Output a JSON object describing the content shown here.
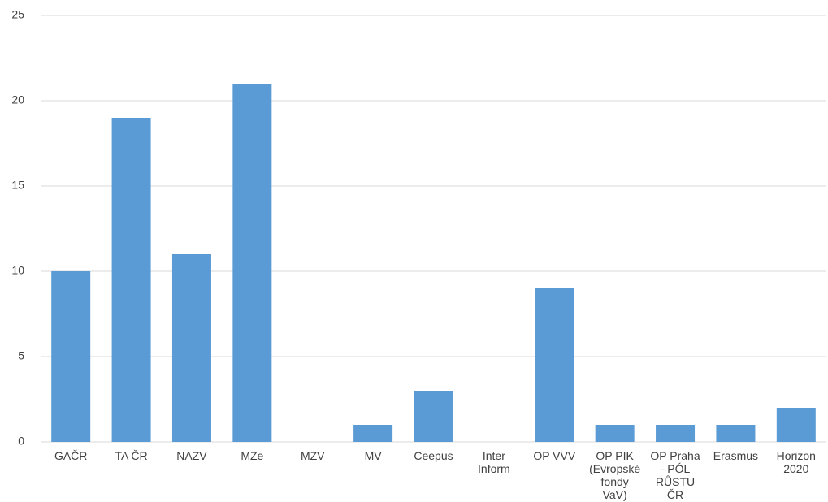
{
  "chart_data": {
    "type": "bar",
    "categories": [
      "GAČR",
      "TA ČR",
      "NAZV",
      "MZe",
      "MZV",
      "MV",
      "Ceepus",
      "Inter Inform",
      "OP VVV",
      "OP PIK (Evropské fondy VaV)",
      "OP Praha - PÓL RŮSTU ČR",
      "Erasmus",
      "Horizon 2020"
    ],
    "values": [
      10,
      19,
      11,
      21,
      0,
      1,
      3,
      0,
      9,
      1,
      1,
      1,
      2
    ],
    "color": "#5b9bd5",
    "ylim": [
      0,
      25
    ],
    "yticks": [
      0,
      5,
      10,
      15,
      20,
      25
    ],
    "grid": true
  }
}
